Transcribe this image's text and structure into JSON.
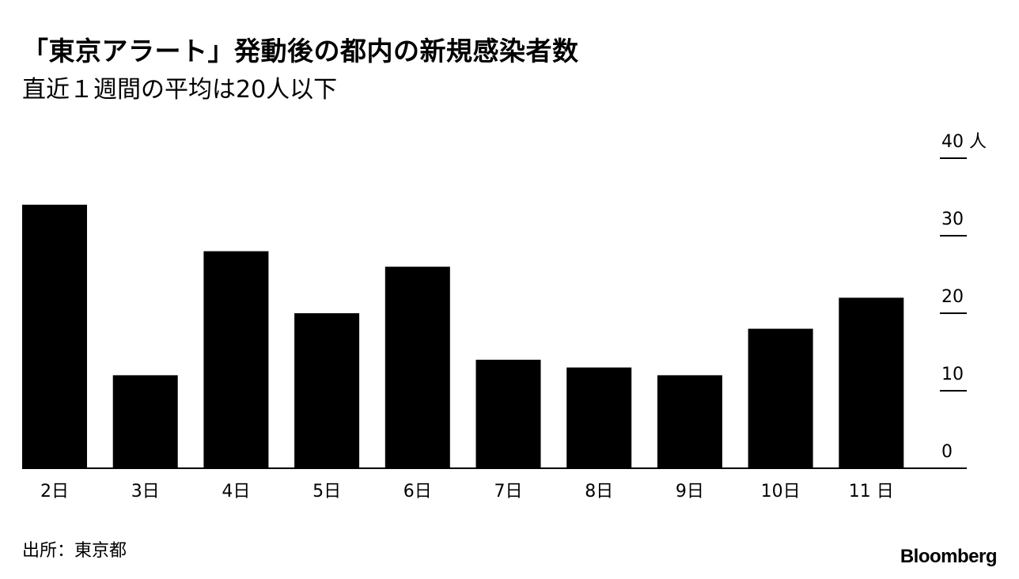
{
  "chart_data": {
    "type": "bar",
    "title": "「東京アラート」発動後の都内の新規感染者数",
    "subtitle": "直近１週間の平均は20人以下",
    "categories": [
      "2日",
      "3日",
      "4日",
      "5日",
      "6日",
      "7日",
      "8日",
      "9日",
      "10日",
      "11 日"
    ],
    "values": [
      34,
      12,
      28,
      20,
      26,
      14,
      13,
      12,
      18,
      22
    ],
    "ylim": [
      0,
      40
    ],
    "yticks": [
      0,
      10,
      20,
      30,
      40
    ],
    "ytick_labels": [
      "0",
      "10",
      "20",
      "30",
      "40 人"
    ],
    "xlabel": "",
    "ylabel": "",
    "legend": "none",
    "grid": false,
    "y_axis_position": "right",
    "bar_color": "#000000"
  },
  "footer": {
    "source": "出所：東京都",
    "brand": "Bloomberg"
  }
}
